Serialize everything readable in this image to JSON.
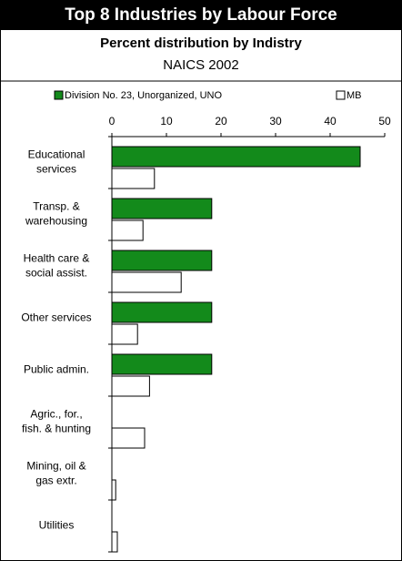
{
  "chart_data": {
    "type": "hbar",
    "title": "Top 8 Industries by Labour Force",
    "subtitle": "Percent distribution by Indistry",
    "subtitle2": "NAICS 2002",
    "categories": [
      "Educational\nservices",
      "Transp. &\nwarehousing",
      "Health care &\nsocial assist.",
      "Other services",
      "Public admin.",
      "Agric., for.,\nfish. & hunting",
      "Mining, oil &\ngas extr.",
      "Utilities"
    ],
    "series": [
      {
        "name": "Division No. 23, Unorganized, UNO",
        "color": "#138a1b",
        "values": [
          45.5,
          18.3,
          18.3,
          18.3,
          18.3,
          0,
          0,
          0
        ]
      },
      {
        "name": "MB",
        "color": "#ffffff",
        "values": [
          7.8,
          5.7,
          12.7,
          4.7,
          6.9,
          6.0,
          0.7,
          1.0
        ]
      }
    ],
    "xlim": [
      0,
      50
    ],
    "xticks": [
      0,
      10,
      20,
      30,
      40,
      50
    ],
    "legend": "top"
  }
}
